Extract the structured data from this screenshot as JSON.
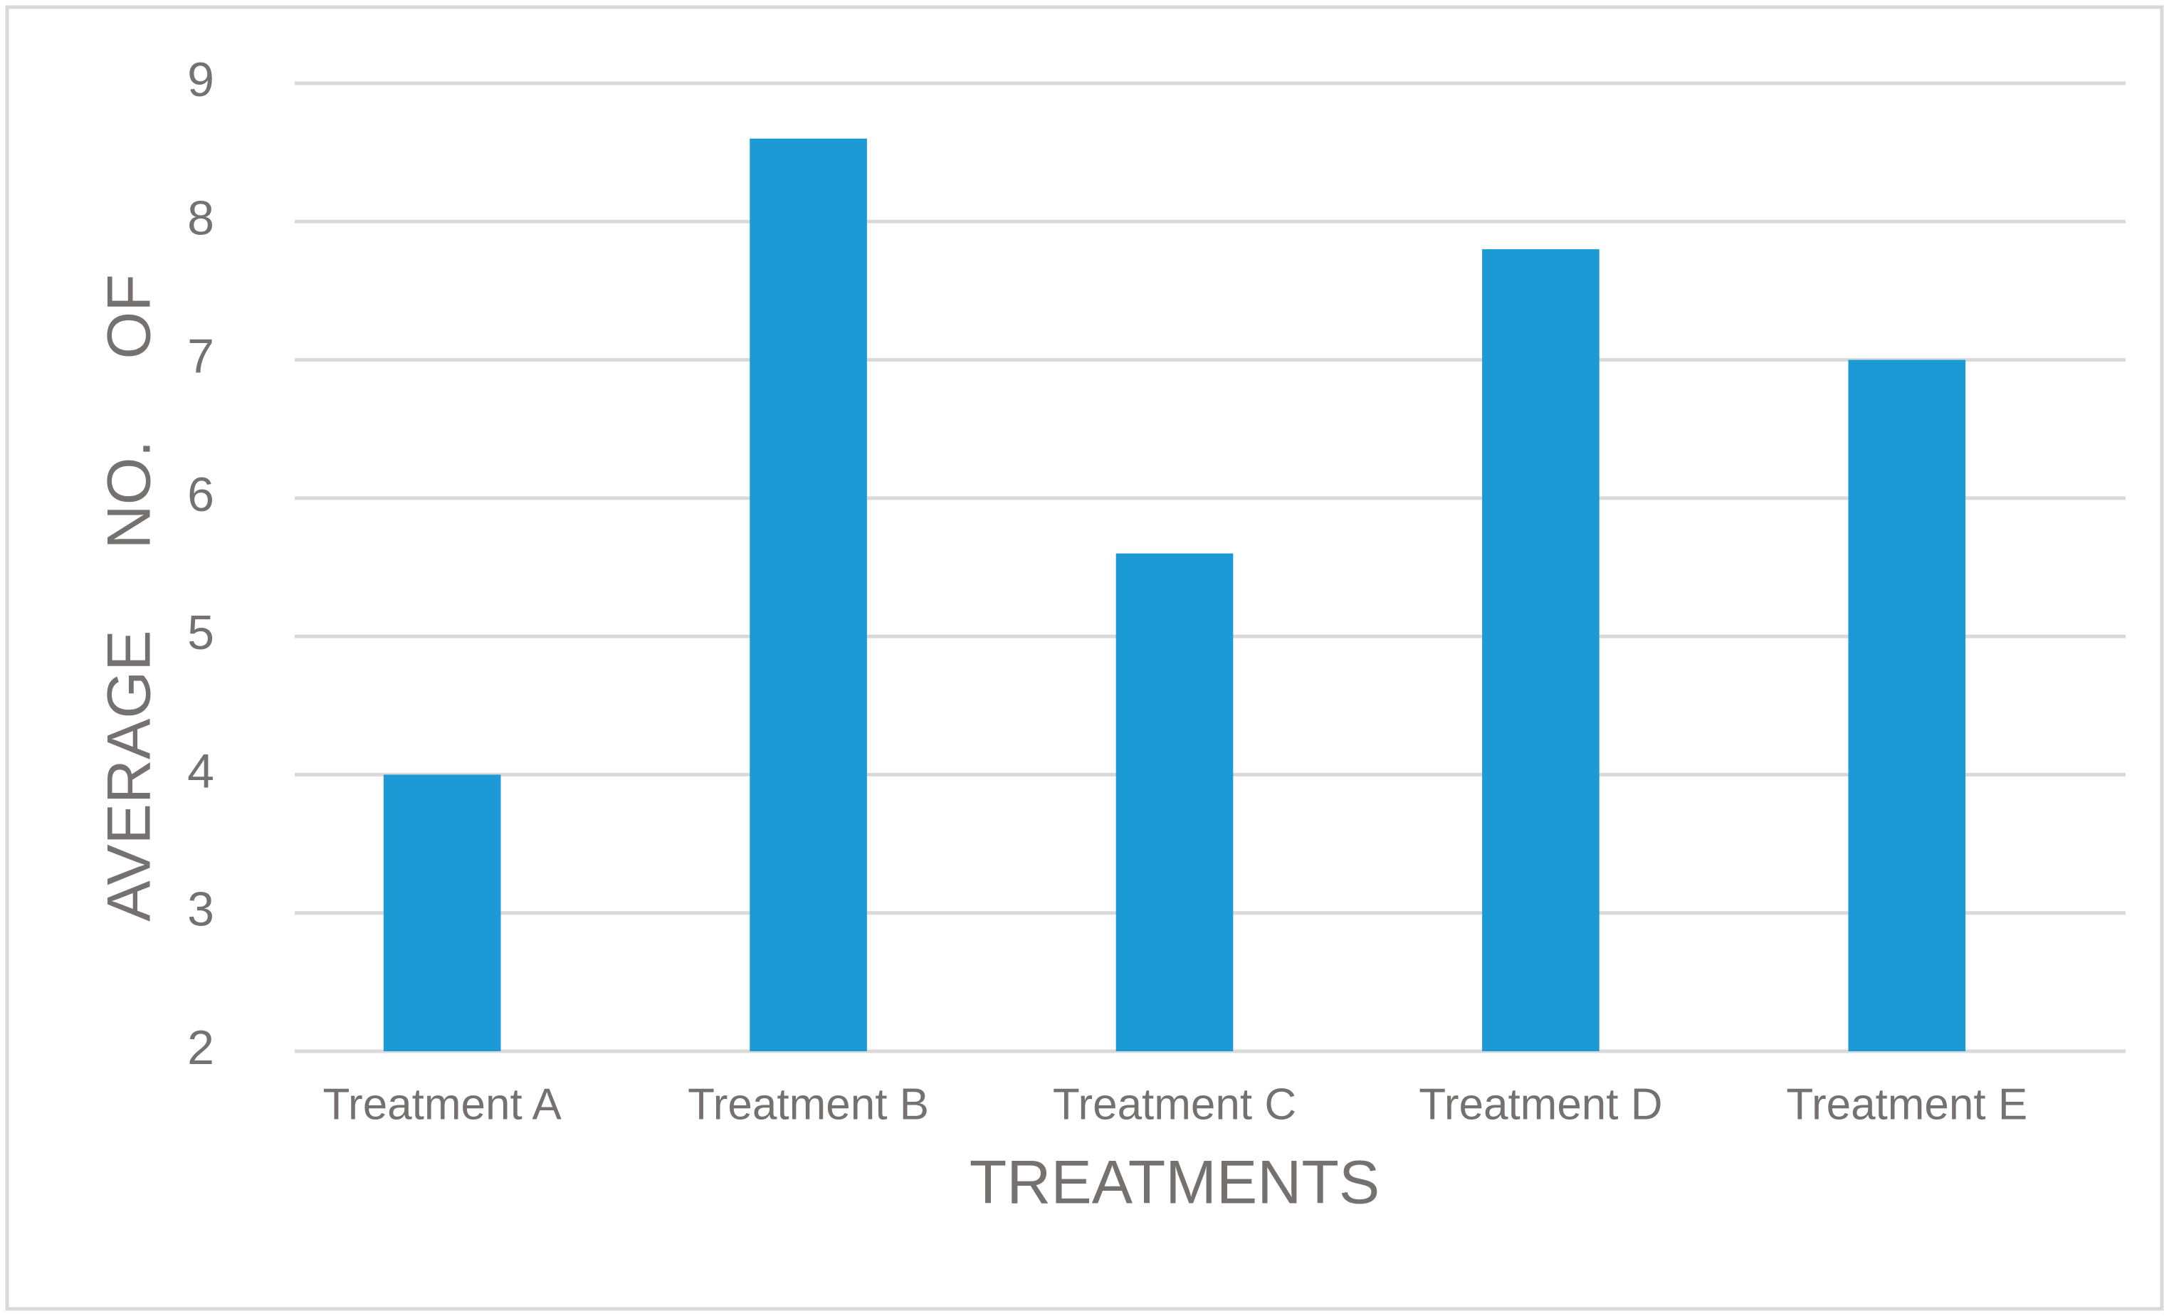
{
  "chart_data": {
    "type": "bar",
    "categories": [
      "Treatment A",
      "Treatment B",
      "Treatment C",
      "Treatment D",
      "Treatment E"
    ],
    "values": [
      4,
      8.6,
      5.6,
      7.8,
      7
    ],
    "color": "#1c9ad6",
    "x_label": "TREATMENTS",
    "y_label": "AVERAGE NO. OF",
    "ylim": [
      2,
      9
    ],
    "yticks": [
      2,
      3,
      4,
      5,
      6,
      7,
      8,
      9
    ],
    "grid": true
  }
}
